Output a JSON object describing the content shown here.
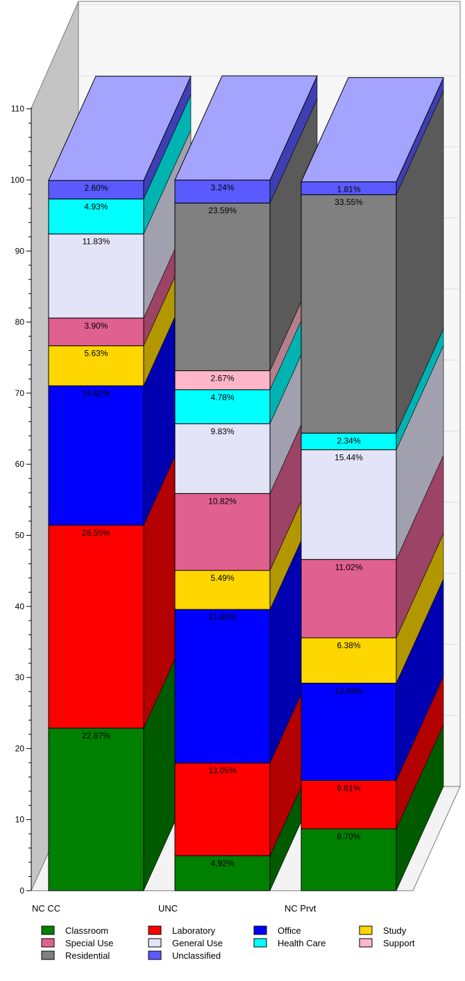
{
  "chart_data": {
    "type": "bar",
    "stacked": true,
    "three_d": true,
    "categories": [
      "NC CC",
      "UNC",
      "NC Prvt"
    ],
    "series": [
      {
        "name": "Classroom",
        "color": "#008000",
        "values": [
          22.87,
          4.92,
          8.7
        ]
      },
      {
        "name": "Laboratory",
        "color": "#FF0000",
        "values": [
          28.55,
          13.05,
          6.81
        ]
      },
      {
        "name": "Office",
        "color": "#0000FF",
        "values": [
          19.62,
          21.6,
          13.69
        ]
      },
      {
        "name": "Study",
        "color": "#FFD700",
        "values": [
          5.63,
          5.49,
          6.38
        ]
      },
      {
        "name": "Special Use",
        "color": "#E06090",
        "values": [
          3.9,
          10.82,
          11.02
        ]
      },
      {
        "name": "General Use",
        "color": "#E4E4F8",
        "values": [
          11.83,
          9.83,
          15.44
        ]
      },
      {
        "name": "Health Care",
        "color": "#00FFFF",
        "values": [
          4.93,
          4.78,
          2.34
        ]
      },
      {
        "name": "Support",
        "color": "#FFB6C8",
        "values": [
          0,
          2.67,
          0
        ]
      },
      {
        "name": "Residential",
        "color": "#808080",
        "values": [
          0,
          23.59,
          33.55
        ]
      },
      {
        "name": "Unclassified",
        "color": "#5A5AFF",
        "values": [
          2.6,
          3.24,
          1.81
        ]
      }
    ],
    "labels": [
      [
        "22.87%",
        "28.55%",
        "19.62%",
        "5.63%",
        "3.90%",
        "11.83%",
        "4.93%",
        "",
        "",
        "2.60%"
      ],
      [
        "4.92%",
        "13.05%",
        "21.60%",
        "5.49%",
        "10.82%",
        "9.83%",
        "4.78%",
        "2.67%",
        "23.59%",
        "3.24%"
      ],
      [
        "8.70%",
        "6.81%",
        "13.69%",
        "6.38%",
        "11.02%",
        "15.44%",
        "2.34%",
        "",
        "33.55%",
        "1.81%"
      ]
    ],
    "ylim": [
      0,
      110
    ],
    "yticks": [
      "0",
      "10",
      "20",
      "30",
      "40",
      "50",
      "60",
      "70",
      "80",
      "90",
      "100",
      "110"
    ],
    "legend_position": "bottom",
    "legend_order": [
      "Classroom",
      "Laboratory",
      "Office",
      "Study",
      "Special Use",
      "General Use",
      "Health Care",
      "Support",
      "Residential",
      "Unclassified"
    ]
  }
}
